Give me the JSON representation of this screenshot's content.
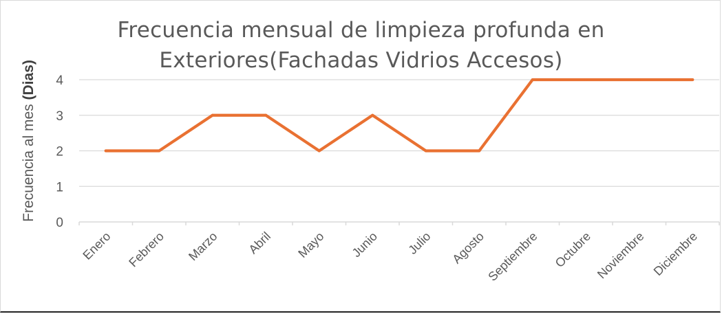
{
  "chart_data": {
    "type": "line",
    "title": "Frecuencia mensual de limpieza profunda en Exteriores(Fachadas Vidrios Accesos)",
    "title_lines": [
      "Frecuencia mensual de limpieza profunda en",
      "Exteriores(Fachadas Vidrios Accesos)"
    ],
    "ylabel_prefix": "Frecuencia al mes ",
    "ylabel_bold": "(Dias)",
    "xlabel": "",
    "categories": [
      "Enero",
      "Febrero",
      "Marzo",
      "Abril",
      "Mayo",
      "Junio",
      "Julio",
      "Agosto",
      "Septiembre",
      "Octubre",
      "Noviembre",
      "Diciembre"
    ],
    "series": [
      {
        "values": [
          2,
          2,
          3,
          3,
          2,
          3,
          2,
          2,
          4,
          4,
          4,
          4
        ]
      }
    ],
    "ylim": [
      0,
      4
    ],
    "yticks": [
      0,
      1,
      2,
      3,
      4
    ],
    "grid": true,
    "legend": "none",
    "line_color": "#E97132",
    "grid_color": "#d9d9d9"
  }
}
